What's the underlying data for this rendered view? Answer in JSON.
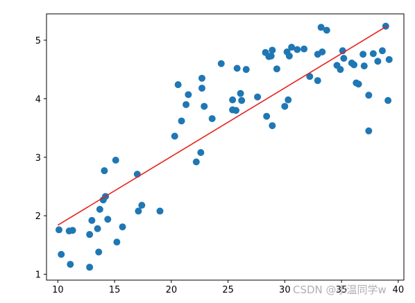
{
  "chart_data": {
    "type": "scatter",
    "title": "",
    "xlabel": "",
    "ylabel": "",
    "xlim": [
      9.0,
      40.5
    ],
    "ylim": [
      0.9,
      5.45
    ],
    "x_ticks": [
      10,
      15,
      20,
      25,
      30,
      35,
      40
    ],
    "y_ticks": [
      1,
      2,
      3,
      4,
      5
    ],
    "grid": false,
    "legend": "none",
    "colors": {
      "points": "#1f77b4",
      "fit_line": "#e8201c"
    },
    "series": [
      {
        "type": "scatter",
        "points": [
          [
            10.1,
            1.76
          ],
          [
            10.3,
            1.34
          ],
          [
            11.0,
            1.74
          ],
          [
            11.3,
            1.75
          ],
          [
            11.1,
            1.17
          ],
          [
            12.8,
            1.68
          ],
          [
            13.0,
            1.92
          ],
          [
            12.8,
            1.12
          ],
          [
            13.5,
            1.78
          ],
          [
            13.6,
            1.38
          ],
          [
            13.7,
            2.11
          ],
          [
            14.0,
            2.27
          ],
          [
            14.2,
            2.33
          ],
          [
            14.1,
            2.77
          ],
          [
            14.4,
            1.94
          ],
          [
            15.1,
            2.95
          ],
          [
            15.2,
            1.55
          ],
          [
            15.7,
            1.81
          ],
          [
            17.0,
            2.71
          ],
          [
            17.1,
            2.08
          ],
          [
            17.4,
            2.18
          ],
          [
            19.0,
            2.08
          ],
          [
            20.3,
            3.36
          ],
          [
            20.6,
            4.24
          ],
          [
            20.9,
            3.62
          ],
          [
            21.3,
            3.9
          ],
          [
            21.5,
            4.07
          ],
          [
            22.2,
            2.92
          ],
          [
            22.6,
            3.08
          ],
          [
            22.7,
            4.18
          ],
          [
            22.7,
            4.35
          ],
          [
            22.9,
            3.87
          ],
          [
            23.6,
            3.66
          ],
          [
            24.4,
            4.6
          ],
          [
            25.4,
            3.98
          ],
          [
            25.4,
            3.81
          ],
          [
            25.8,
            4.52
          ],
          [
            25.7,
            3.8
          ],
          [
            26.1,
            4.09
          ],
          [
            26.2,
            3.97
          ],
          [
            26.6,
            4.5
          ],
          [
            27.6,
            4.03
          ],
          [
            28.3,
            4.79
          ],
          [
            28.4,
            3.7
          ],
          [
            28.6,
            4.72
          ],
          [
            28.8,
            4.73
          ],
          [
            28.9,
            4.83
          ],
          [
            28.9,
            3.54
          ],
          [
            29.3,
            4.51
          ],
          [
            30.0,
            3.87
          ],
          [
            30.2,
            4.8
          ],
          [
            30.3,
            3.98
          ],
          [
            30.4,
            4.73
          ],
          [
            30.6,
            4.88
          ],
          [
            31.1,
            4.84
          ],
          [
            31.7,
            4.85
          ],
          [
            32.2,
            4.38
          ],
          [
            32.9,
            4.31
          ],
          [
            32.9,
            4.76
          ],
          [
            33.2,
            5.22
          ],
          [
            33.3,
            4.8
          ],
          [
            33.7,
            5.17
          ],
          [
            34.6,
            4.57
          ],
          [
            34.9,
            4.5
          ],
          [
            35.1,
            4.82
          ],
          [
            35.2,
            4.69
          ],
          [
            35.9,
            4.61
          ],
          [
            36.1,
            4.58
          ],
          [
            36.3,
            4.27
          ],
          [
            36.5,
            4.25
          ],
          [
            36.9,
            4.76
          ],
          [
            37.0,
            4.56
          ],
          [
            37.4,
            4.06
          ],
          [
            37.4,
            3.45
          ],
          [
            37.8,
            4.77
          ],
          [
            38.2,
            4.64
          ],
          [
            38.6,
            4.82
          ],
          [
            38.9,
            5.24
          ],
          [
            39.2,
            4.67
          ],
          [
            39.1,
            3.97
          ]
        ]
      },
      {
        "type": "line",
        "x": [
          10.0,
          39.0
        ],
        "y": [
          1.84,
          5.24
        ]
      }
    ]
  },
  "watermark": {
    "text": "CSDN @小温同学w"
  }
}
